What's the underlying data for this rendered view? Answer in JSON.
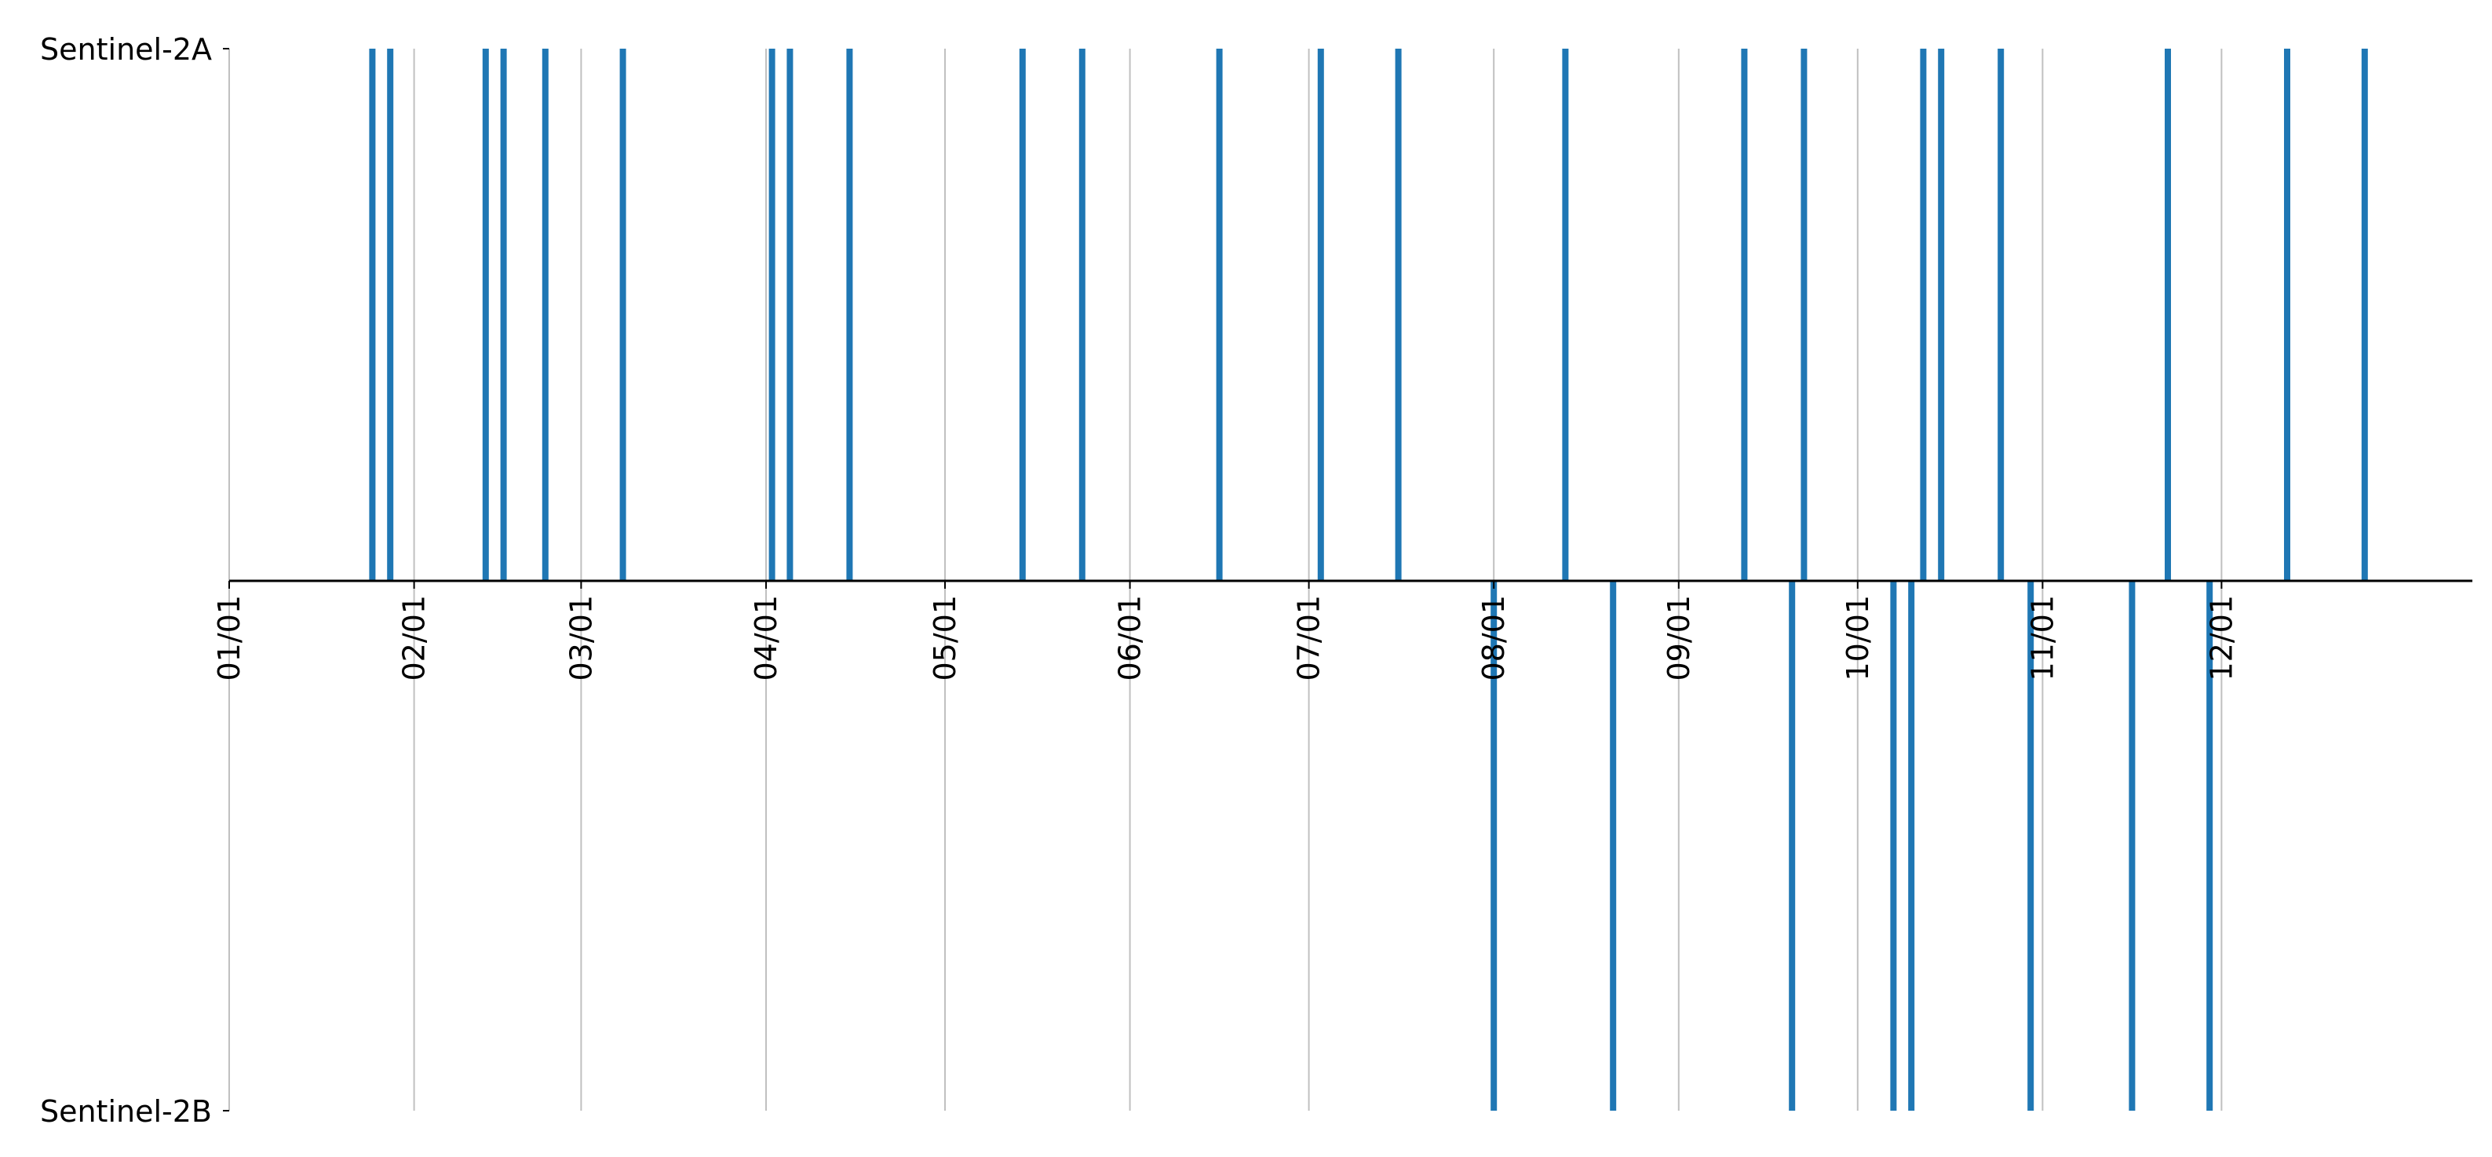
{
  "chart_data": {
    "type": "event timeline",
    "title": "",
    "xlabel": "",
    "ylabel": "",
    "x_axis": "date (day of year)",
    "xlim": [
      "01/01",
      "12/31"
    ],
    "x_tick_labels": [
      "01/01",
      "02/01",
      "03/01",
      "04/01",
      "05/01",
      "06/01",
      "07/01",
      "08/01",
      "09/01",
      "10/01",
      "11/01",
      "12/01"
    ],
    "y_tick_labels": [
      "Sentinel-2A",
      "Sentinel-2B"
    ],
    "grid": "vertical lines at month starts",
    "color": "#1f77b4",
    "grid_color": "#c0c0c0",
    "series": [
      {
        "name": "Sentinel-2A",
        "direction": "up",
        "dates": [
          "01/25",
          "01/28",
          "02/13",
          "02/16",
          "02/23",
          "03/08",
          "04/02",
          "04/05",
          "04/15",
          "05/14",
          "05/24",
          "06/16",
          "07/03",
          "07/16",
          "08/13",
          "09/12",
          "09/22",
          "10/12",
          "10/15",
          "10/25",
          "11/22",
          "12/12",
          "12/25"
        ]
      },
      {
        "name": "Sentinel-2B",
        "direction": "down",
        "dates": [
          "08/01",
          "08/21",
          "09/20",
          "10/07",
          "10/10",
          "10/30",
          "11/16",
          "11/29"
        ]
      }
    ]
  }
}
